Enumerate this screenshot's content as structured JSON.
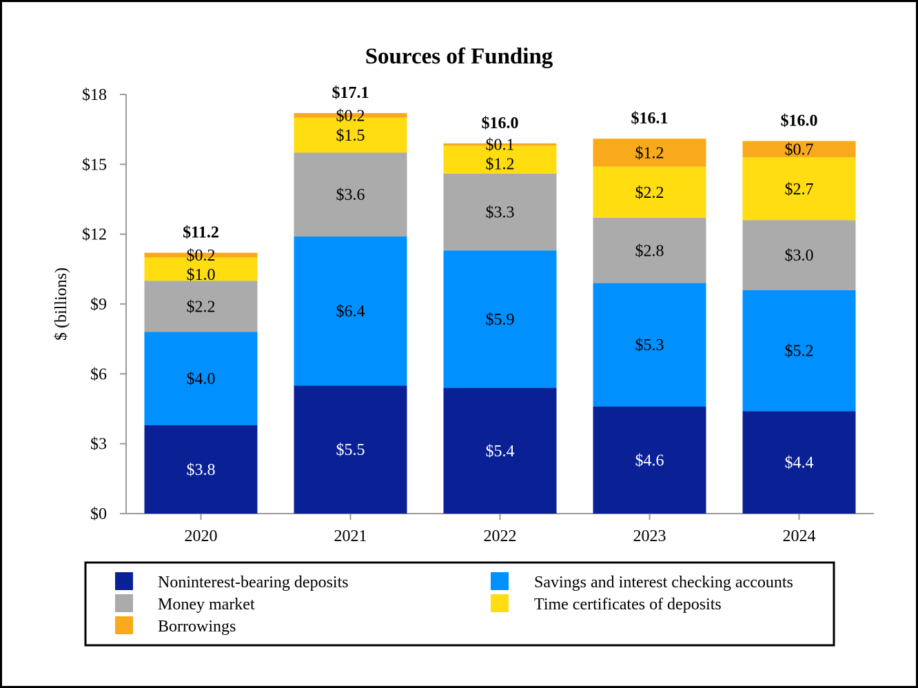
{
  "chart_data": {
    "type": "bar",
    "stacked": true,
    "title": "Sources of Funding",
    "ylabel": "$ (billions)",
    "xlabel": "",
    "ylim": [
      0,
      18
    ],
    "y_ticks": [
      0,
      3,
      6,
      9,
      12,
      15,
      18
    ],
    "y_tick_labels": [
      "$0",
      "$3",
      "$6",
      "$9",
      "$12",
      "$15",
      "$18"
    ],
    "categories": [
      "2020",
      "2021",
      "2022",
      "2023",
      "2024"
    ],
    "totals": [
      11.2,
      17.1,
      16.0,
      16.1,
      16.0
    ],
    "total_labels": [
      "$11.2",
      "$17.1",
      "$16.0",
      "$16.1",
      "$16.0"
    ],
    "legend_position": "bottom",
    "series": [
      {
        "name": "Noninterest-bearing deposits",
        "color": "#0A2196",
        "label_color": "#FFFFFF",
        "values": [
          3.8,
          5.5,
          5.4,
          4.6,
          4.4
        ],
        "labels": [
          "$3.8",
          "$5.5",
          "$5.4",
          "$4.6",
          "$4.4"
        ]
      },
      {
        "name": "Savings and interest checking accounts",
        "color": "#0090FF",
        "label_color": "#000000",
        "values": [
          4.0,
          6.4,
          5.9,
          5.3,
          5.2
        ],
        "labels": [
          "$4.0",
          "$6.4",
          "$5.9",
          "$5.3",
          "$5.2"
        ]
      },
      {
        "name": "Money market",
        "color": "#ABABAB",
        "label_color": "#000000",
        "values": [
          2.2,
          3.6,
          3.3,
          2.8,
          3.0
        ],
        "labels": [
          "$2.2",
          "$3.6",
          "$3.3",
          "$2.8",
          "$3.0"
        ]
      },
      {
        "name": "Time certificates of deposits",
        "color": "#FFDD10",
        "label_color": "#000000",
        "values": [
          1.0,
          1.5,
          1.2,
          2.2,
          2.7
        ],
        "labels": [
          "$1.0",
          "$1.5",
          "$1.2",
          "$2.2",
          "$2.7"
        ]
      },
      {
        "name": "Borrowings",
        "color": "#F9A91C",
        "label_color": "#000000",
        "values": [
          0.2,
          0.2,
          0.1,
          1.2,
          0.7
        ],
        "labels": [
          "$0.2",
          "$0.2",
          "$0.1",
          "$1.2",
          "$0.7"
        ]
      }
    ]
  }
}
